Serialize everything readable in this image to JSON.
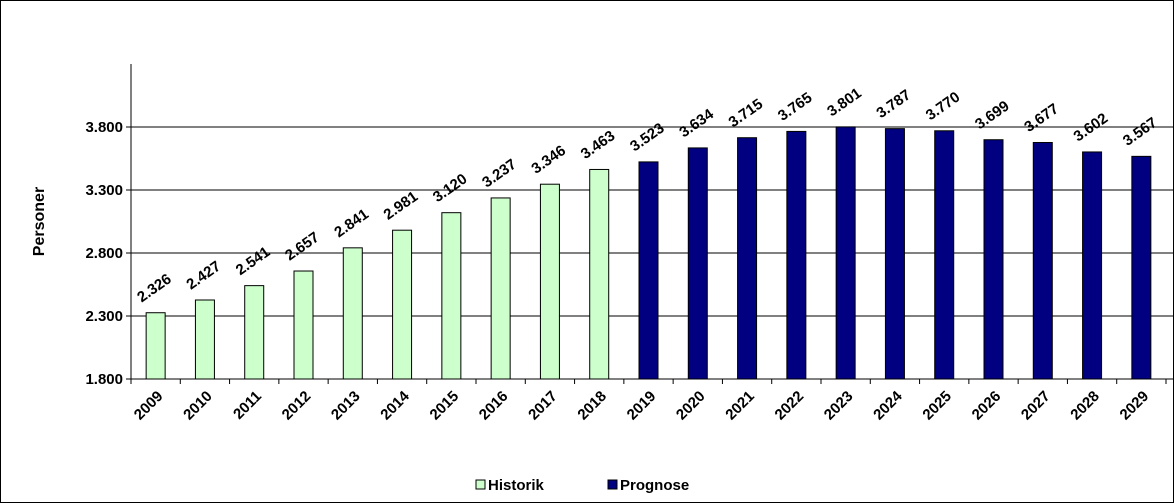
{
  "chart_data": {
    "type": "bar",
    "title": "",
    "xlabel": "",
    "ylabel": "Personer",
    "ylim": [
      1800,
      4300
    ],
    "yticks": [
      1800,
      2300,
      2800,
      3300,
      3800
    ],
    "ytick_labels": [
      "1.800",
      "2.300",
      "2.800",
      "3.300",
      "3.800"
    ],
    "grid": true,
    "legend_position": "bottom",
    "categories": [
      "2009",
      "2010",
      "2011",
      "2012",
      "2013",
      "2014",
      "2015",
      "2016",
      "2017",
      "2018",
      "2019",
      "2020",
      "2021",
      "2022",
      "2023",
      "2024",
      "2025",
      "2026",
      "2027",
      "2028",
      "2029"
    ],
    "series": [
      {
        "name": "Historik",
        "color": "#ccffcc",
        "values": [
          2326,
          2427,
          2541,
          2657,
          2841,
          2981,
          3120,
          3237,
          3346,
          3463,
          null,
          null,
          null,
          null,
          null,
          null,
          null,
          null,
          null,
          null,
          null
        ],
        "labels": [
          "2.326",
          "2.427",
          "2.541",
          "2.657",
          "2.841",
          "2.981",
          "3.120",
          "3.237",
          "3.346",
          "3.463",
          null,
          null,
          null,
          null,
          null,
          null,
          null,
          null,
          null,
          null,
          null
        ]
      },
      {
        "name": "Prognose",
        "color": "#000080",
        "values": [
          null,
          null,
          null,
          null,
          null,
          null,
          null,
          null,
          null,
          null,
          3523,
          3634,
          3715,
          3765,
          3801,
          3787,
          3770,
          3699,
          3677,
          3602,
          3567
        ],
        "labels": [
          null,
          null,
          null,
          null,
          null,
          null,
          null,
          null,
          null,
          null,
          "3.523",
          "3.634",
          "3.715",
          "3.765",
          "3.801",
          "3.787",
          "3.770",
          "3.699",
          "3.677",
          "3.602",
          "3.567"
        ]
      }
    ]
  }
}
